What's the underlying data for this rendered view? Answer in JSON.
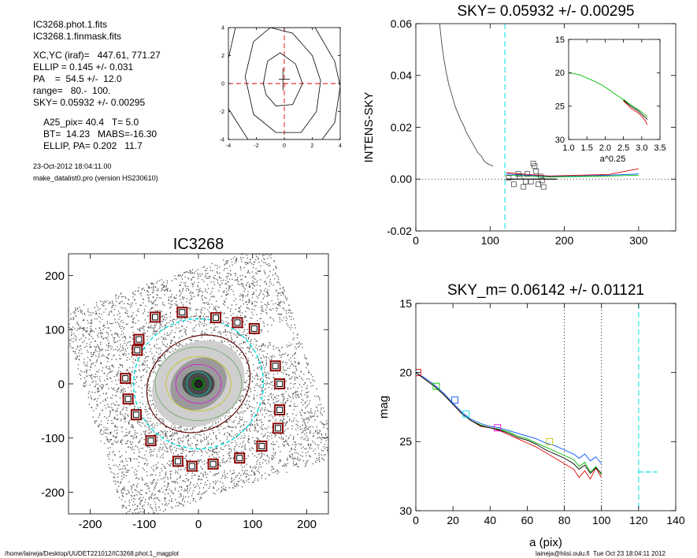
{
  "info": {
    "file1": "IC3268.phot.1.fits",
    "file2": "IC3268.1.finmask.fits",
    "xcyc": "XC,YC (iraf)=   447.61, 771.27",
    "ellip": "ELLIP = 0.145 +/- 0.031",
    "pa": "PA    =  54.5 +/-  12.0",
    "range": "range=   80.-  100.",
    "sky": "SKY= 0.05932 +/- 0.00295",
    "a25": "A25_pix= 40.4   T= 5.0",
    "bt": "BT=  14.23   MABS=-16.30",
    "ellip_pa": "ELLIP, PA= 0.202   11.7",
    "date": "23-Oct-2012 18:04:11.00",
    "program": "make_datalist0.pro (version HS230610)"
  },
  "footer": {
    "path": "/home/laineja/Desktop/UUDET221012/IC3268.phot.1_magplot",
    "user": "laineja@hiisi.oulu.fi  Tue Oct 23 18:04:11 2012"
  },
  "colors": {
    "cyan": "#00e0e0",
    "red": "#e00000",
    "green": "#00c000",
    "blue": "#0050ff",
    "magenta": "#e000e0",
    "olive": "#c0c000"
  },
  "chart_data": [
    {
      "type": "line",
      "title": "",
      "xlim": [
        -4,
        4
      ],
      "ylim": [
        -4,
        4
      ],
      "xticks": [
        "-4",
        "-2",
        "0",
        "2",
        "4"
      ],
      "yticks": [
        "-4",
        "-2",
        "0",
        "2",
        "4"
      ],
      "contours": [
        [
          [
            -1.5,
            0.0
          ],
          [
            -1.2,
            1.6
          ],
          [
            -0.3,
            2.2
          ],
          [
            0.8,
            1.4
          ],
          [
            1.3,
            0.0
          ],
          [
            0.6,
            -1.5
          ],
          [
            -0.6,
            -1.6
          ],
          [
            -1.3,
            -0.8
          ],
          [
            -1.5,
            0.0
          ]
        ],
        [
          [
            -2.8,
            0.5
          ],
          [
            -2.2,
            3.0
          ],
          [
            -1.0,
            4.0
          ],
          [
            0.6,
            3.6
          ],
          [
            2.0,
            2.0
          ],
          [
            2.6,
            0.2
          ],
          [
            2.3,
            -2.0
          ],
          [
            1.2,
            -3.5
          ],
          [
            -0.6,
            -3.5
          ],
          [
            -2.2,
            -2.2
          ],
          [
            -2.8,
            0.5
          ]
        ],
        [
          [
            -4.0,
            1.8
          ],
          [
            -3.5,
            4.0
          ],
          [
            2.2,
            4.0
          ],
          [
            3.6,
            1.6
          ],
          [
            4.0,
            -0.2
          ],
          [
            3.6,
            -2.8
          ],
          [
            2.7,
            -4.0
          ],
          [
            -2.6,
            -4.0
          ],
          [
            -4.0,
            -1.8
          ],
          [
            -4.0,
            1.8
          ]
        ]
      ]
    },
    {
      "type": "line",
      "title": "SKY= 0.05932 +/- 0.00295",
      "xlabel": "",
      "ylabel": "INTENS-SKY",
      "xlim": [
        0,
        350
      ],
      "ylim": [
        -0.02,
        0.06
      ],
      "xticks": [
        "0",
        "100",
        "200",
        "300"
      ],
      "yticks": [
        "-0.02",
        "0.00",
        "0.02",
        "0.04",
        "0.06"
      ],
      "sky_fit_start": 120,
      "profile": {
        "x": [
          32,
          35,
          38,
          41,
          44,
          47,
          50,
          53,
          56,
          60,
          64,
          68,
          72,
          76,
          80,
          84,
          88,
          92,
          96,
          100,
          104
        ],
        "y": [
          0.06,
          0.052,
          0.046,
          0.041,
          0.037,
          0.034,
          0.031,
          0.028,
          0.026,
          0.023,
          0.021,
          0.018,
          0.016,
          0.014,
          0.012,
          0.01,
          0.009,
          0.007,
          0.006,
          0.0055,
          0.005
        ]
      },
      "sky_series": [
        {
          "x": [
            122,
            150,
            180,
            220,
            260,
            300
          ],
          "y": [
            0.002,
            0.0015,
            0.001,
            0.0012,
            0.0015,
            0.002
          ]
        },
        {
          "x": [
            122,
            150,
            180,
            220,
            260,
            300
          ],
          "y": [
            0.0025,
            0.0018,
            0.0012,
            0.0015,
            0.0018,
            0.004
          ]
        },
        {
          "x": [
            122,
            150,
            180,
            220,
            260,
            300
          ],
          "y": [
            0.0015,
            0.0012,
            0.0008,
            0.001,
            0.0012,
            0.0015
          ]
        }
      ],
      "squares": {
        "x": [
          125,
          132,
          140,
          145,
          150,
          155,
          158,
          160,
          162,
          165,
          168,
          170,
          172,
          138,
          148
        ],
        "y": [
          0.0005,
          -0.002,
          0.001,
          -0.003,
          0.002,
          -0.001,
          0.006,
          0.005,
          0.003,
          -0.002,
          0.001,
          -0.0005,
          -0.003,
          0.002,
          -0.001
        ]
      },
      "inset": {
        "xlabel": "a^0.25",
        "xlim": [
          1.0,
          3.5
        ],
        "ylim": [
          30,
          15
        ],
        "xticks": [
          "1.0",
          "1.5",
          "2.0",
          "2.5",
          "3.0",
          "3.5"
        ],
        "yticks": [
          "15",
          "20",
          "25",
          "30"
        ],
        "green": {
          "x": [
            1.0,
            1.3,
            1.6,
            1.9,
            2.1,
            2.3,
            2.5,
            2.7,
            2.9,
            3.0,
            3.1,
            3.15
          ],
          "y": [
            20.0,
            20.3,
            21.0,
            21.8,
            22.5,
            23.3,
            24.0,
            24.8,
            25.5,
            25.9,
            26.3,
            26.6
          ]
        },
        "red": {
          "x": [
            2.5,
            2.7,
            2.9,
            3.0,
            3.1,
            3.15
          ],
          "y": [
            24.2,
            25.3,
            26.0,
            26.5,
            27.2,
            27.8
          ]
        },
        "black": {
          "x": [
            2.5,
            2.7,
            2.9,
            3.0,
            3.1,
            3.15
          ],
          "y": [
            24.1,
            25.0,
            25.7,
            26.2,
            26.7,
            27.0
          ]
        }
      }
    },
    {
      "type": "scatter",
      "title": "IC3268",
      "xlim": [
        -240,
        240
      ],
      "ylim": [
        -240,
        240
      ],
      "xticks": [
        "-200",
        "-100",
        "0",
        "100",
        "200"
      ],
      "yticks": [
        "-200",
        "-100",
        "0",
        "100",
        "200"
      ],
      "ellipse_inner": {
        "a": 100,
        "b": 85,
        "pa_deg": 54.5
      },
      "ring_radius": 120,
      "boxes": {
        "x": [
          -80,
          -30,
          32,
          72,
          103,
          -110,
          -113,
          -135,
          -130,
          -115,
          142,
          150,
          150,
          147,
          117,
          -88,
          -38,
          -12,
          27,
          76
        ],
        "y": [
          123,
          132,
          122,
          113,
          102,
          82,
          62,
          10,
          -28,
          -57,
          33,
          0,
          -48,
          -82,
          -115,
          -105,
          -143,
          -152,
          -148,
          -137
        ]
      }
    },
    {
      "type": "line",
      "title": "SKY_m=  0.06142 +/- 0.01121",
      "xlabel": "a (pix)",
      "ylabel": "mag",
      "xlim": [
        0,
        140
      ],
      "ylim": [
        30,
        15
      ],
      "xticks": [
        "0",
        "20",
        "40",
        "60",
        "80",
        "100",
        "120",
        "140"
      ],
      "yticks": [
        "15",
        "20",
        "25",
        "30"
      ],
      "vlines": [
        80,
        100
      ],
      "sky_start": 120,
      "series": [
        {
          "x": [
            0,
            5,
            10,
            15,
            20,
            25,
            30,
            35,
            40,
            45,
            50,
            55,
            60,
            65,
            70,
            75,
            80,
            85,
            88,
            91,
            94,
            97,
            100
          ],
          "y": [
            20.0,
            20.5,
            21.0,
            21.6,
            22.3,
            23.0,
            23.5,
            23.8,
            24.0,
            24.1,
            24.3,
            24.6,
            24.8,
            25.1,
            25.4,
            25.7,
            26.0,
            26.3,
            26.8,
            26.5,
            27.2,
            26.8,
            27.4
          ]
        },
        {
          "x": [
            0,
            5,
            10,
            15,
            20,
            25,
            30,
            35,
            40,
            45,
            50,
            55,
            60,
            65,
            70,
            75,
            80,
            85,
            88,
            91,
            94,
            97,
            100
          ],
          "y": [
            20.0,
            20.5,
            21.0,
            21.6,
            22.3,
            23.0,
            23.5,
            23.9,
            24.0,
            24.2,
            24.5,
            24.8,
            25.1,
            25.4,
            25.8,
            26.2,
            26.6,
            27.0,
            27.6,
            27.1,
            27.7,
            26.9,
            27.6
          ]
        },
        {
          "x": [
            0,
            5,
            10,
            15,
            20,
            25,
            30,
            35,
            40,
            45,
            50,
            55,
            60,
            65,
            70,
            75,
            80,
            85,
            88,
            91,
            94,
            97,
            100
          ],
          "y": [
            20.0,
            20.4,
            20.9,
            21.5,
            22.2,
            22.9,
            23.4,
            23.7,
            23.9,
            24.0,
            24.2,
            24.4,
            24.6,
            24.8,
            25.1,
            25.3,
            25.6,
            25.9,
            26.2,
            25.9,
            26.4,
            26.1,
            26.6
          ]
        },
        {
          "x": [
            0,
            5,
            10,
            15,
            20,
            25,
            30,
            35,
            40,
            45,
            50,
            55,
            60,
            65,
            70,
            75,
            80,
            85,
            88,
            91,
            94,
            97,
            100
          ],
          "y": [
            20.0,
            20.5,
            21.0,
            21.6,
            22.3,
            23.0,
            23.5,
            23.85,
            24.0,
            24.15,
            24.4,
            24.7,
            24.9,
            25.2,
            25.6,
            25.9,
            26.2,
            26.6,
            27.0,
            26.7,
            27.3,
            26.9,
            27.3
          ]
        }
      ],
      "squares": {
        "x": [
          1,
          11,
          21,
          27,
          44,
          72
        ],
        "y": [
          20.0,
          21.0,
          22.0,
          23.0,
          24.0,
          25.0
        ]
      },
      "sky_level": {
        "x": [
          120,
          130
        ],
        "y": [
          27.2,
          27.2
        ]
      }
    }
  ]
}
